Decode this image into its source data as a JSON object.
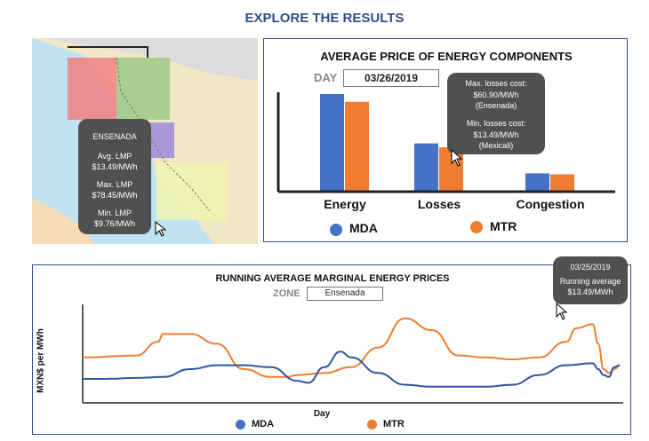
{
  "page": {
    "title": "EXPLORE THE RESULTS"
  },
  "map": {
    "tooltip": {
      "zone": "ENSENADA",
      "avg_label": "Avg. LMP",
      "avg_value": "$13.49/MWh",
      "max_label": "Max. LMP",
      "max_value": "$78.45/MWh",
      "min_label": "Min. LMP",
      "min_value": "$9.76/MWh"
    }
  },
  "bar_panel": {
    "day_label": "DAY",
    "day_value": "03/26/2019",
    "tooltip": {
      "max_label": "Max. losses cost:",
      "max_value": "$60.90/MWh",
      "max_zone": "(Ensenada)",
      "min_label": "Min. losses cost:",
      "min_value": "$13.49/MWh",
      "min_zone": "(Mexicali)"
    }
  },
  "line_panel": {
    "zone_label": "ZONE",
    "zone_value": "Ensenada",
    "tooltip": {
      "date": "03/25/2019",
      "label": "Running average",
      "value": "$13.49/MWh"
    }
  },
  "colors": {
    "mda": "#4472c4",
    "mtr": "#ed7d31",
    "title": "#2e4e8a",
    "tooltip": "#505050"
  },
  "chart_data": [
    {
      "type": "bar",
      "title": "AVERAGE PRICE OF ENERGY COMPONENTS",
      "categories": [
        "Energy",
        "Losses",
        "Congestion"
      ],
      "series": [
        {
          "name": "MDA",
          "values": [
            100,
            49,
            18
          ]
        },
        {
          "name": "MTR",
          "values": [
            92,
            45,
            17
          ]
        }
      ],
      "ylim": [
        0,
        100
      ],
      "legend": "bottom",
      "grid": false
    },
    {
      "type": "line",
      "title": "RUNNING AVERAGE MARGINAL ENERGY PRICES",
      "xlabel": "Day",
      "ylabel": "MXN$ per MWh",
      "xlim": [
        0,
        100
      ],
      "ylim": [
        0,
        100
      ],
      "series": [
        {
          "name": "MDA",
          "x": [
            0,
            4,
            10,
            15,
            20,
            25,
            30,
            35,
            40,
            42,
            45,
            48,
            50,
            55,
            60,
            65,
            70,
            75,
            80,
            85,
            90,
            95,
            96,
            97,
            98,
            99,
            100
          ],
          "y": [
            20,
            20,
            21,
            22,
            30,
            34,
            34,
            32,
            18,
            16,
            32,
            48,
            42,
            26,
            14,
            12,
            12,
            12,
            14,
            24,
            34,
            36,
            30,
            24,
            22,
            32,
            34
          ]
        },
        {
          "name": "MTR",
          "x": [
            0,
            10,
            14,
            15,
            20,
            25,
            30,
            35,
            38,
            40,
            45,
            50,
            55,
            60,
            65,
            70,
            75,
            80,
            85,
            90,
            92,
            95,
            96,
            97,
            98,
            99,
            100
          ],
          "y": [
            42,
            44,
            58,
            66,
            66,
            56,
            30,
            22,
            22,
            24,
            26,
            32,
            52,
            82,
            70,
            44,
            42,
            40,
            42,
            58,
            72,
            76,
            56,
            30,
            26,
            30,
            34
          ]
        }
      ],
      "legend": "bottom",
      "grid": false
    }
  ]
}
